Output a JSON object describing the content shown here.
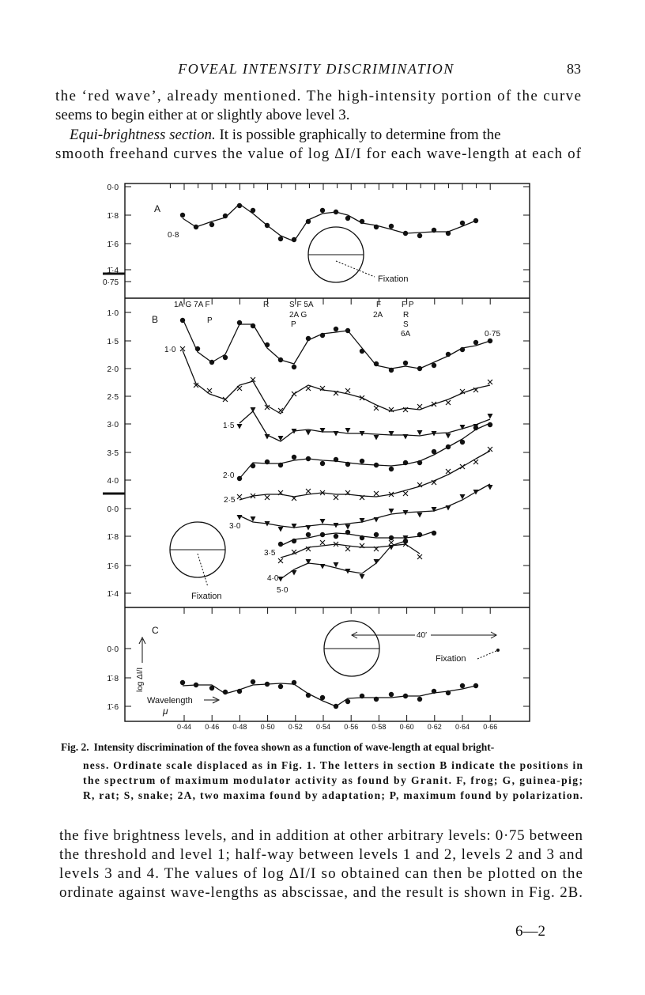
{
  "header": {
    "title": "FOVEAL INTENSITY DISCRIMINATION",
    "page": "83"
  },
  "body_top": {
    "lines": [
      "the ‘red wave’, already mentioned. The high-intensity portion of the curve",
      "seems to begin either at or slightly above level 3."
    ],
    "paragraph": {
      "heading": "Equi-brightness section.",
      "rest": " It is possible graphically to determine from the",
      "line2": "smooth freehand curves the value of log ΔI/I for each wave-length at each of"
    }
  },
  "figure": {
    "panel_a": {
      "label": "A",
      "curve_label": "0·8",
      "fixation": "Fixation",
      "yticks": [
        "0·0",
        "1̄·8",
        "1̄·6",
        "1̄·4",
        "0·75"
      ]
    },
    "panel_b": {
      "label": "B",
      "fixation": "Fixation",
      "spectrum_labels": [
        "1A G 7A F",
        "P",
        "R",
        "S F 5A",
        "2A G",
        "P",
        "F",
        "2A",
        "F P",
        "R",
        "S",
        "6A"
      ],
      "level_labels": [
        "1·0",
        "1·5",
        "2·0",
        "2·5",
        "3·0",
        "3·5",
        "4·0",
        "5·0",
        "0·75"
      ],
      "yticks": [
        "1·0",
        "1·5",
        "2·0",
        "2·5",
        "3·0",
        "3·5",
        "4·0",
        "0·0",
        "1̄·8",
        "1̄·6",
        "1̄·4"
      ]
    },
    "panel_c": {
      "label": "C",
      "distance": "40′",
      "fixation": "Fixation",
      "axis_label": "log ΔI/I",
      "x_label": "Wavelength",
      "x_unit": "μ",
      "yticks": [
        "0·0",
        "1̄·8",
        "1̄·6"
      ]
    },
    "xticks": [
      "0·44",
      "0·46",
      "0·48",
      "0·50",
      "0·52",
      "0·54",
      "0·56",
      "0·58",
      "0·60",
      "0·62",
      "0·64",
      "0·66"
    ]
  },
  "caption": {
    "fig": "Fig. 2.",
    "lines": [
      "Intensity discrimination of the fovea shown as a function of wave-length at equal bright-",
      "ness.  Ordinate scale displaced as in Fig. 1.  The letters in section B indicate the positions in",
      "the spectrum of maximum modulator activity as found by Granit.  F, frog; G, guinea-pig;",
      "R, rat; S, snake; 2A, two maxima found by adaptation; P, maximum found by polarization."
    ]
  },
  "body_bottom": [
    "the five brightness levels, and in addition at other arbitrary levels: 0·75 between",
    "the threshold and level 1; half-way between levels 1 and 2, levels 2 and 3 and",
    "levels 3 and 4. The values of log ΔI/I so obtained can then be plotted on the",
    "ordinate against wave-lengths as abscissae, and the result is shown in Fig. 2B."
  ],
  "signature": "6—2"
}
